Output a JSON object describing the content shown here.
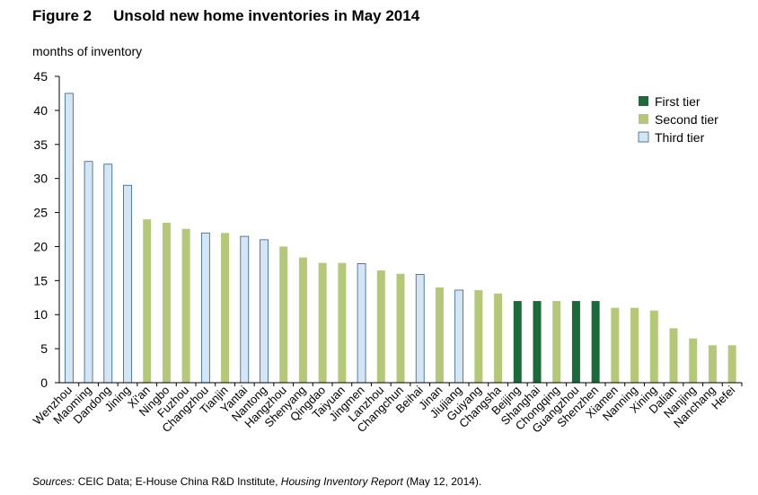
{
  "figure": {
    "number": "Figure 2",
    "title": "Unsold new home inventories in May 2014"
  },
  "unit_label": "months of inventory",
  "source": {
    "label": "Sources:",
    "text_before": " CEIC Data; E-House China R&D Institute, ",
    "report": "Housing Inventory Report",
    "text_after": " (May 12, 2014)."
  },
  "colors": {
    "first_tier": "#1b6b3a",
    "second_tier": "#b5c878",
    "third_tier": "#d4e6f4",
    "third_tier_border": "#2e5f8a"
  },
  "chart_data": {
    "type": "bar",
    "title": "Unsold new home inventories in May 2014",
    "ylabel": "months of inventory",
    "xlabel": "",
    "ylim": [
      0,
      45
    ],
    "yticks": [
      0,
      5,
      10,
      15,
      20,
      25,
      30,
      35,
      40,
      45
    ],
    "grid": false,
    "legend_position": "top-right",
    "legend": [
      {
        "key": "first",
        "label": "First tier"
      },
      {
        "key": "second",
        "label": "Second tier"
      },
      {
        "key": "third",
        "label": "Third tier"
      }
    ],
    "categories": [
      "Wenzhou",
      "Maoming",
      "Dandong",
      "Jining",
      "Xi'an",
      "Ningbo",
      "Fuzhou",
      "Changzhou",
      "Tianjin",
      "Yantai",
      "Nantong",
      "Hangzhou",
      "Shenyang",
      "Qingdao",
      "Taiyuan",
      "Jingmen",
      "Lanzhou",
      "Changchun",
      "Beihai",
      "Jinan",
      "Jiujiang",
      "Guiyang",
      "Changsha",
      "Beijing",
      "Shanghai",
      "Chongqing",
      "Guangzhou",
      "Shenzhen",
      "Xiamen",
      "Nanning",
      "Xining",
      "Dalian",
      "Nanjing",
      "Nanchang",
      "Hefei"
    ],
    "values": [
      42.5,
      32.5,
      32.1,
      29.0,
      24.0,
      23.5,
      22.6,
      22.0,
      22.0,
      21.5,
      21.0,
      20.0,
      18.4,
      17.6,
      17.6,
      17.5,
      16.5,
      16.0,
      15.9,
      14.0,
      13.6,
      13.6,
      13.1,
      12.0,
      12.0,
      12.0,
      12.0,
      12.0,
      11.0,
      11.0,
      10.6,
      8.0,
      6.5,
      5.5,
      5.5
    ],
    "tiers": [
      "third",
      "third",
      "third",
      "third",
      "second",
      "second",
      "second",
      "third",
      "second",
      "third",
      "third",
      "second",
      "second",
      "second",
      "second",
      "third",
      "second",
      "second",
      "third",
      "second",
      "third",
      "second",
      "second",
      "first",
      "first",
      "second",
      "first",
      "first",
      "second",
      "second",
      "second",
      "second",
      "second",
      "second",
      "second"
    ]
  }
}
